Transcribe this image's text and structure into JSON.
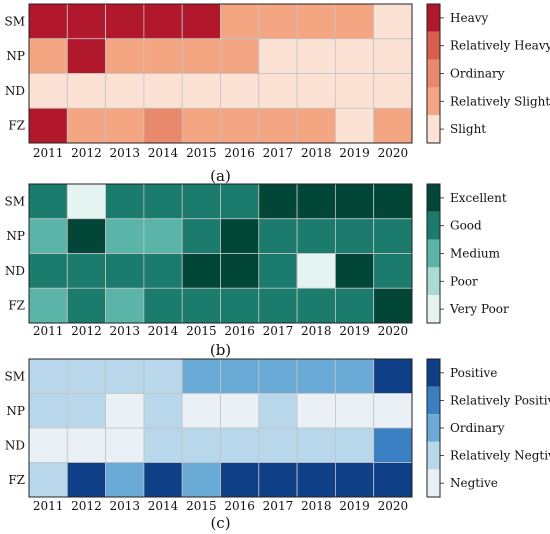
{
  "chart_data": [
    {
      "type": "heatmap",
      "panel_label": "(a)",
      "x": [
        "2011",
        "2012",
        "2013",
        "2014",
        "2015",
        "2016",
        "2017",
        "2018",
        "2019",
        "2020"
      ],
      "y": [
        "SM",
        "NP",
        "ND",
        "FZ"
      ],
      "levels": [
        "Heavy",
        "Relatively Heavy",
        "Ordinary",
        "Relatively Slight",
        "Slight"
      ],
      "colors": [
        "#b2182b",
        "#d6604d",
        "#e8896b",
        "#f4a582",
        "#fbe2d5"
      ],
      "values": [
        [
          0,
          0,
          0,
          0,
          0,
          3,
          3,
          3,
          3,
          4
        ],
        [
          3,
          0,
          3,
          3,
          3,
          3,
          4,
          4,
          4,
          4
        ],
        [
          4,
          4,
          4,
          4,
          4,
          4,
          4,
          4,
          4,
          4
        ],
        [
          0,
          3,
          3,
          2,
          3,
          3,
          3,
          3,
          4,
          3
        ]
      ]
    },
    {
      "type": "heatmap",
      "panel_label": "(b)",
      "x": [
        "2011",
        "2012",
        "2013",
        "2014",
        "2015",
        "2016",
        "2017",
        "2018",
        "2019",
        "2020"
      ],
      "y": [
        "SM",
        "NP",
        "ND",
        "FZ"
      ],
      "levels": [
        "Excellent",
        "Good",
        "Medium",
        "Poor",
        "Very Poor"
      ],
      "colors": [
        "#014636",
        "#1b7b6c",
        "#5ab4a8",
        "#a9dbd3",
        "#e6f4f1"
      ],
      "values": [
        [
          1,
          4,
          1,
          1,
          1,
          1,
          0,
          0,
          0,
          0
        ],
        [
          2,
          0,
          2,
          2,
          1,
          0,
          1,
          1,
          1,
          1
        ],
        [
          1,
          1,
          1,
          1,
          0,
          0,
          1,
          4,
          0,
          1
        ],
        [
          2,
          1,
          2,
          1,
          1,
          1,
          1,
          1,
          1,
          0
        ]
      ]
    },
    {
      "type": "heatmap",
      "panel_label": "(c)",
      "x": [
        "2011",
        "2012",
        "2013",
        "2014",
        "2015",
        "2016",
        "2017",
        "2018",
        "2019",
        "2020"
      ],
      "y": [
        "SM",
        "NP",
        "ND",
        "FZ"
      ],
      "levels": [
        "Positive",
        "Relatively Positive",
        "Ordinary",
        "Relatively Negtive",
        "Negtive"
      ],
      "colors": [
        "#0f3f86",
        "#3a7fc2",
        "#6aaad6",
        "#b9d7ea",
        "#e9f1f7"
      ],
      "values": [
        [
          3,
          3,
          3,
          3,
          2,
          2,
          2,
          2,
          2,
          0
        ],
        [
          3,
          3,
          4,
          3,
          4,
          4,
          3,
          4,
          4,
          4
        ],
        [
          4,
          4,
          4,
          3,
          3,
          3,
          3,
          3,
          3,
          1
        ],
        [
          3,
          0,
          2,
          0,
          2,
          0,
          0,
          0,
          0,
          0
        ]
      ]
    }
  ]
}
